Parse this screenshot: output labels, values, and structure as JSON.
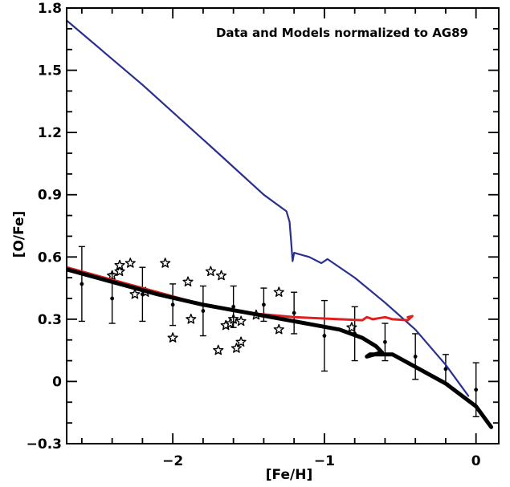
{
  "chart_data": {
    "type": "scatter",
    "annotation": "Data and Models normalized to AG89",
    "xlabel": "[Fe/H]",
    "ylabel": "[O/Fe]",
    "xlim": [
      -2.7,
      0.15
    ],
    "ylim": [
      -0.3,
      1.8
    ],
    "x_ticks": [
      -2,
      -1,
      0
    ],
    "x_tick_labels": [
      "−2",
      "−1",
      "0"
    ],
    "y_ticks": [
      -0.3,
      0,
      0.3,
      0.6,
      0.9,
      1.2,
      1.5,
      1.8
    ],
    "y_tick_labels": [
      "−0.3",
      "0",
      "0.3",
      "0.6",
      "0.9",
      "1.2",
      "1.5",
      "1.8"
    ],
    "grid": false,
    "colors": {
      "blue_model": "#2a2f8f",
      "red_model": "#e02020",
      "black_model": "#000000"
    },
    "series": [
      {
        "marker": "star",
        "points": [
          [
            -2.4,
            0.51
          ],
          [
            -2.35,
            0.53
          ],
          [
            -2.35,
            0.56
          ],
          [
            -2.28,
            0.57
          ],
          [
            -2.25,
            0.42
          ],
          [
            -2.18,
            0.43
          ],
          [
            -2.05,
            0.57
          ],
          [
            -2.0,
            0.21
          ],
          [
            -1.9,
            0.48
          ],
          [
            -1.88,
            0.3
          ],
          [
            -1.75,
            0.53
          ],
          [
            -1.7,
            0.15
          ],
          [
            -1.68,
            0.51
          ],
          [
            -1.65,
            0.27
          ],
          [
            -1.62,
            0.28
          ],
          [
            -1.6,
            0.3
          ],
          [
            -1.58,
            0.16
          ],
          [
            -1.55,
            0.19
          ],
          [
            -1.55,
            0.29
          ],
          [
            -1.45,
            0.32
          ],
          [
            -1.3,
            0.43
          ],
          [
            -1.3,
            0.25
          ],
          [
            -0.82,
            0.26
          ]
        ]
      },
      {
        "marker": "errorbar",
        "points": [
          {
            "x": -2.6,
            "y": 0.47,
            "err": 0.18
          },
          {
            "x": -2.4,
            "y": 0.4,
            "err": 0.12
          },
          {
            "x": -2.2,
            "y": 0.42,
            "err": 0.13
          },
          {
            "x": -2.0,
            "y": 0.37,
            "err": 0.1
          },
          {
            "x": -1.8,
            "y": 0.34,
            "err": 0.12
          },
          {
            "x": -1.6,
            "y": 0.36,
            "err": 0.1
          },
          {
            "x": -1.4,
            "y": 0.37,
            "err": 0.08
          },
          {
            "x": -1.2,
            "y": 0.33,
            "err": 0.1
          },
          {
            "x": -1.0,
            "y": 0.22,
            "err": 0.17
          },
          {
            "x": -0.8,
            "y": 0.23,
            "err": 0.13
          },
          {
            "x": -0.6,
            "y": 0.19,
            "err": 0.09
          },
          {
            "x": -0.4,
            "y": 0.12,
            "err": 0.11
          },
          {
            "x": -0.2,
            "y": 0.06,
            "err": 0.07
          },
          {
            "x": 0.0,
            "y": -0.04,
            "err": 0.13
          }
        ]
      },
      {
        "marker": "line",
        "color": "#2a2f8f",
        "points": [
          [
            -2.7,
            1.74
          ],
          [
            -2.2,
            1.43
          ],
          [
            -1.7,
            1.1
          ],
          [
            -1.4,
            0.9
          ],
          [
            -1.25,
            0.82
          ],
          [
            -1.23,
            0.77
          ],
          [
            -1.22,
            0.68
          ],
          [
            -1.21,
            0.58
          ],
          [
            -1.2,
            0.62
          ],
          [
            -1.1,
            0.6
          ],
          [
            -1.02,
            0.57
          ],
          [
            -0.98,
            0.59
          ],
          [
            -0.8,
            0.5
          ],
          [
            -0.6,
            0.38
          ],
          [
            -0.4,
            0.25
          ],
          [
            -0.2,
            0.08
          ],
          [
            -0.05,
            -0.07
          ]
        ]
      },
      {
        "marker": "line",
        "color": "#e02020",
        "points": [
          [
            -2.7,
            0.55
          ],
          [
            -2.4,
            0.49
          ],
          [
            -2.1,
            0.43
          ],
          [
            -1.8,
            0.37
          ],
          [
            -1.5,
            0.33
          ],
          [
            -1.2,
            0.31
          ],
          [
            -0.9,
            0.3
          ],
          [
            -0.75,
            0.295
          ],
          [
            -0.72,
            0.31
          ],
          [
            -0.68,
            0.3
          ],
          [
            -0.6,
            0.31
          ],
          [
            -0.55,
            0.3
          ],
          [
            -0.45,
            0.295
          ],
          [
            -0.42,
            0.315
          ],
          [
            -0.45,
            0.31
          ]
        ]
      },
      {
        "marker": "line",
        "color": "#000000",
        "points": [
          [
            -2.7,
            0.54
          ],
          [
            -2.4,
            0.48
          ],
          [
            -2.1,
            0.42
          ],
          [
            -1.8,
            0.37
          ],
          [
            -1.5,
            0.33
          ],
          [
            -1.2,
            0.29
          ],
          [
            -0.9,
            0.25
          ],
          [
            -0.75,
            0.21
          ],
          [
            -0.66,
            0.17
          ],
          [
            -0.62,
            0.14
          ],
          [
            -0.72,
            0.12
          ],
          [
            -0.7,
            0.13
          ],
          [
            -0.6,
            0.13
          ],
          [
            -0.55,
            0.13
          ],
          [
            -0.4,
            0.07
          ],
          [
            -0.2,
            -0.01
          ],
          [
            0.0,
            -0.12
          ],
          [
            0.1,
            -0.22
          ]
        ]
      }
    ]
  }
}
